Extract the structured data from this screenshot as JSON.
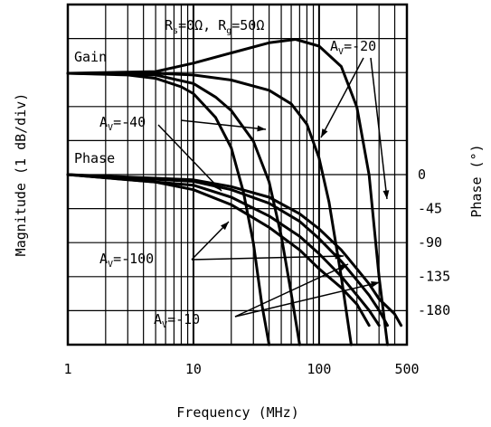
{
  "chart_data": {
    "type": "line",
    "xlabel": "Frequency (MHz)",
    "ylabel_left": "Magnitude (1 dB/div)",
    "ylabel_right": "Phase (°)",
    "x_scale": "log",
    "xlim": [
      1,
      500
    ],
    "x_ticks": [
      {
        "value": 1,
        "label": "1"
      },
      {
        "value": 10,
        "label": "10"
      },
      {
        "value": 100,
        "label": "100"
      },
      {
        "value": 500,
        "label": "500"
      }
    ],
    "phase_ticks": [
      {
        "value": 0,
        "label": "0"
      },
      {
        "value": -45,
        "label": "-45"
      },
      {
        "value": -90,
        "label": "-90"
      },
      {
        "value": -135,
        "label": "-135"
      },
      {
        "value": -180,
        "label": "-180"
      }
    ],
    "grid": true,
    "condition": {
      "rs_sym": "R",
      "rs_sub": "s",
      "rs_val": "=0Ω,",
      "rg_sym": "R",
      "rg_sub": "g",
      "rg_val": "=50Ω"
    },
    "gain_label": "Gain",
    "phase_label": "Phase",
    "gain_series": [
      {
        "name": "AV=-10",
        "points": [
          [
            1,
            0
          ],
          [
            5,
            0.05
          ],
          [
            10,
            0.3
          ],
          [
            20,
            0.6
          ],
          [
            40,
            0.9
          ],
          [
            65,
            1.0
          ],
          [
            100,
            0.8
          ],
          [
            150,
            0.2
          ],
          [
            200,
            -1.0
          ],
          [
            250,
            -3.0
          ],
          [
            300,
            -6.0
          ],
          [
            350,
            -8.5
          ]
        ]
      },
      {
        "name": "AV=-20",
        "points": [
          [
            1,
            0
          ],
          [
            5,
            0
          ],
          [
            10,
            -0.05
          ],
          [
            20,
            -0.2
          ],
          [
            40,
            -0.5
          ],
          [
            60,
            -0.9
          ],
          [
            80,
            -1.5
          ],
          [
            100,
            -2.5
          ],
          [
            120,
            -3.8
          ],
          [
            150,
            -6.0
          ],
          [
            180,
            -8.5
          ]
        ]
      },
      {
        "name": "AV=-40",
        "points": [
          [
            1,
            0
          ],
          [
            5,
            -0.05
          ],
          [
            10,
            -0.3
          ],
          [
            15,
            -0.7
          ],
          [
            20,
            -1.1
          ],
          [
            30,
            -2.0
          ],
          [
            40,
            -3.2
          ],
          [
            50,
            -4.8
          ],
          [
            60,
            -6.5
          ],
          [
            70,
            -8.5
          ]
        ]
      },
      {
        "name": "AV=-100",
        "points": [
          [
            1,
            0
          ],
          [
            3,
            -0.05
          ],
          [
            5,
            -0.15
          ],
          [
            8,
            -0.4
          ],
          [
            10,
            -0.6
          ],
          [
            15,
            -1.3
          ],
          [
            20,
            -2.2
          ],
          [
            25,
            -3.5
          ],
          [
            30,
            -5.0
          ],
          [
            35,
            -6.8
          ],
          [
            40,
            -8.5
          ]
        ]
      }
    ],
    "phase_series": [
      {
        "name": "AV=-10",
        "points": [
          [
            1,
            0
          ],
          [
            10,
            -7
          ],
          [
            20,
            -16
          ],
          [
            40,
            -30
          ],
          [
            70,
            -52
          ],
          [
            100,
            -72
          ],
          [
            150,
            -100
          ],
          [
            200,
            -125
          ],
          [
            250,
            -145
          ],
          [
            300,
            -165
          ],
          [
            400,
            -185
          ],
          [
            450,
            -200
          ]
        ]
      },
      {
        "name": "AV=-20",
        "points": [
          [
            1,
            0
          ],
          [
            10,
            -9
          ],
          [
            20,
            -20
          ],
          [
            40,
            -38
          ],
          [
            70,
            -62
          ],
          [
            100,
            -85
          ],
          [
            150,
            -115
          ],
          [
            200,
            -140
          ],
          [
            250,
            -160
          ],
          [
            300,
            -180
          ],
          [
            350,
            -200
          ]
        ]
      },
      {
        "name": "AV=-40",
        "points": [
          [
            1,
            0
          ],
          [
            10,
            -14
          ],
          [
            20,
            -30
          ],
          [
            40,
            -55
          ],
          [
            70,
            -82
          ],
          [
            100,
            -105
          ],
          [
            150,
            -135
          ],
          [
            200,
            -160
          ],
          [
            250,
            -180
          ],
          [
            300,
            -200
          ]
        ]
      },
      {
        "name": "AV=-100",
        "points": [
          [
            1,
            0
          ],
          [
            5,
            -10
          ],
          [
            10,
            -20
          ],
          [
            20,
            -40
          ],
          [
            40,
            -70
          ],
          [
            70,
            -100
          ],
          [
            100,
            -125
          ],
          [
            150,
            -150
          ],
          [
            200,
            -172
          ],
          [
            250,
            -200
          ]
        ]
      }
    ],
    "annotations": {
      "av_m20": {
        "pre": "A",
        "sub": "V",
        "post": "=-20"
      },
      "av_m40": {
        "pre": "A",
        "sub": "V",
        "post": "=-40"
      },
      "av_m100": {
        "pre": "A",
        "sub": "V",
        "post": "=-100"
      },
      "av_m10": {
        "pre": "A",
        "sub": "V",
        "post": "=-10"
      }
    }
  }
}
